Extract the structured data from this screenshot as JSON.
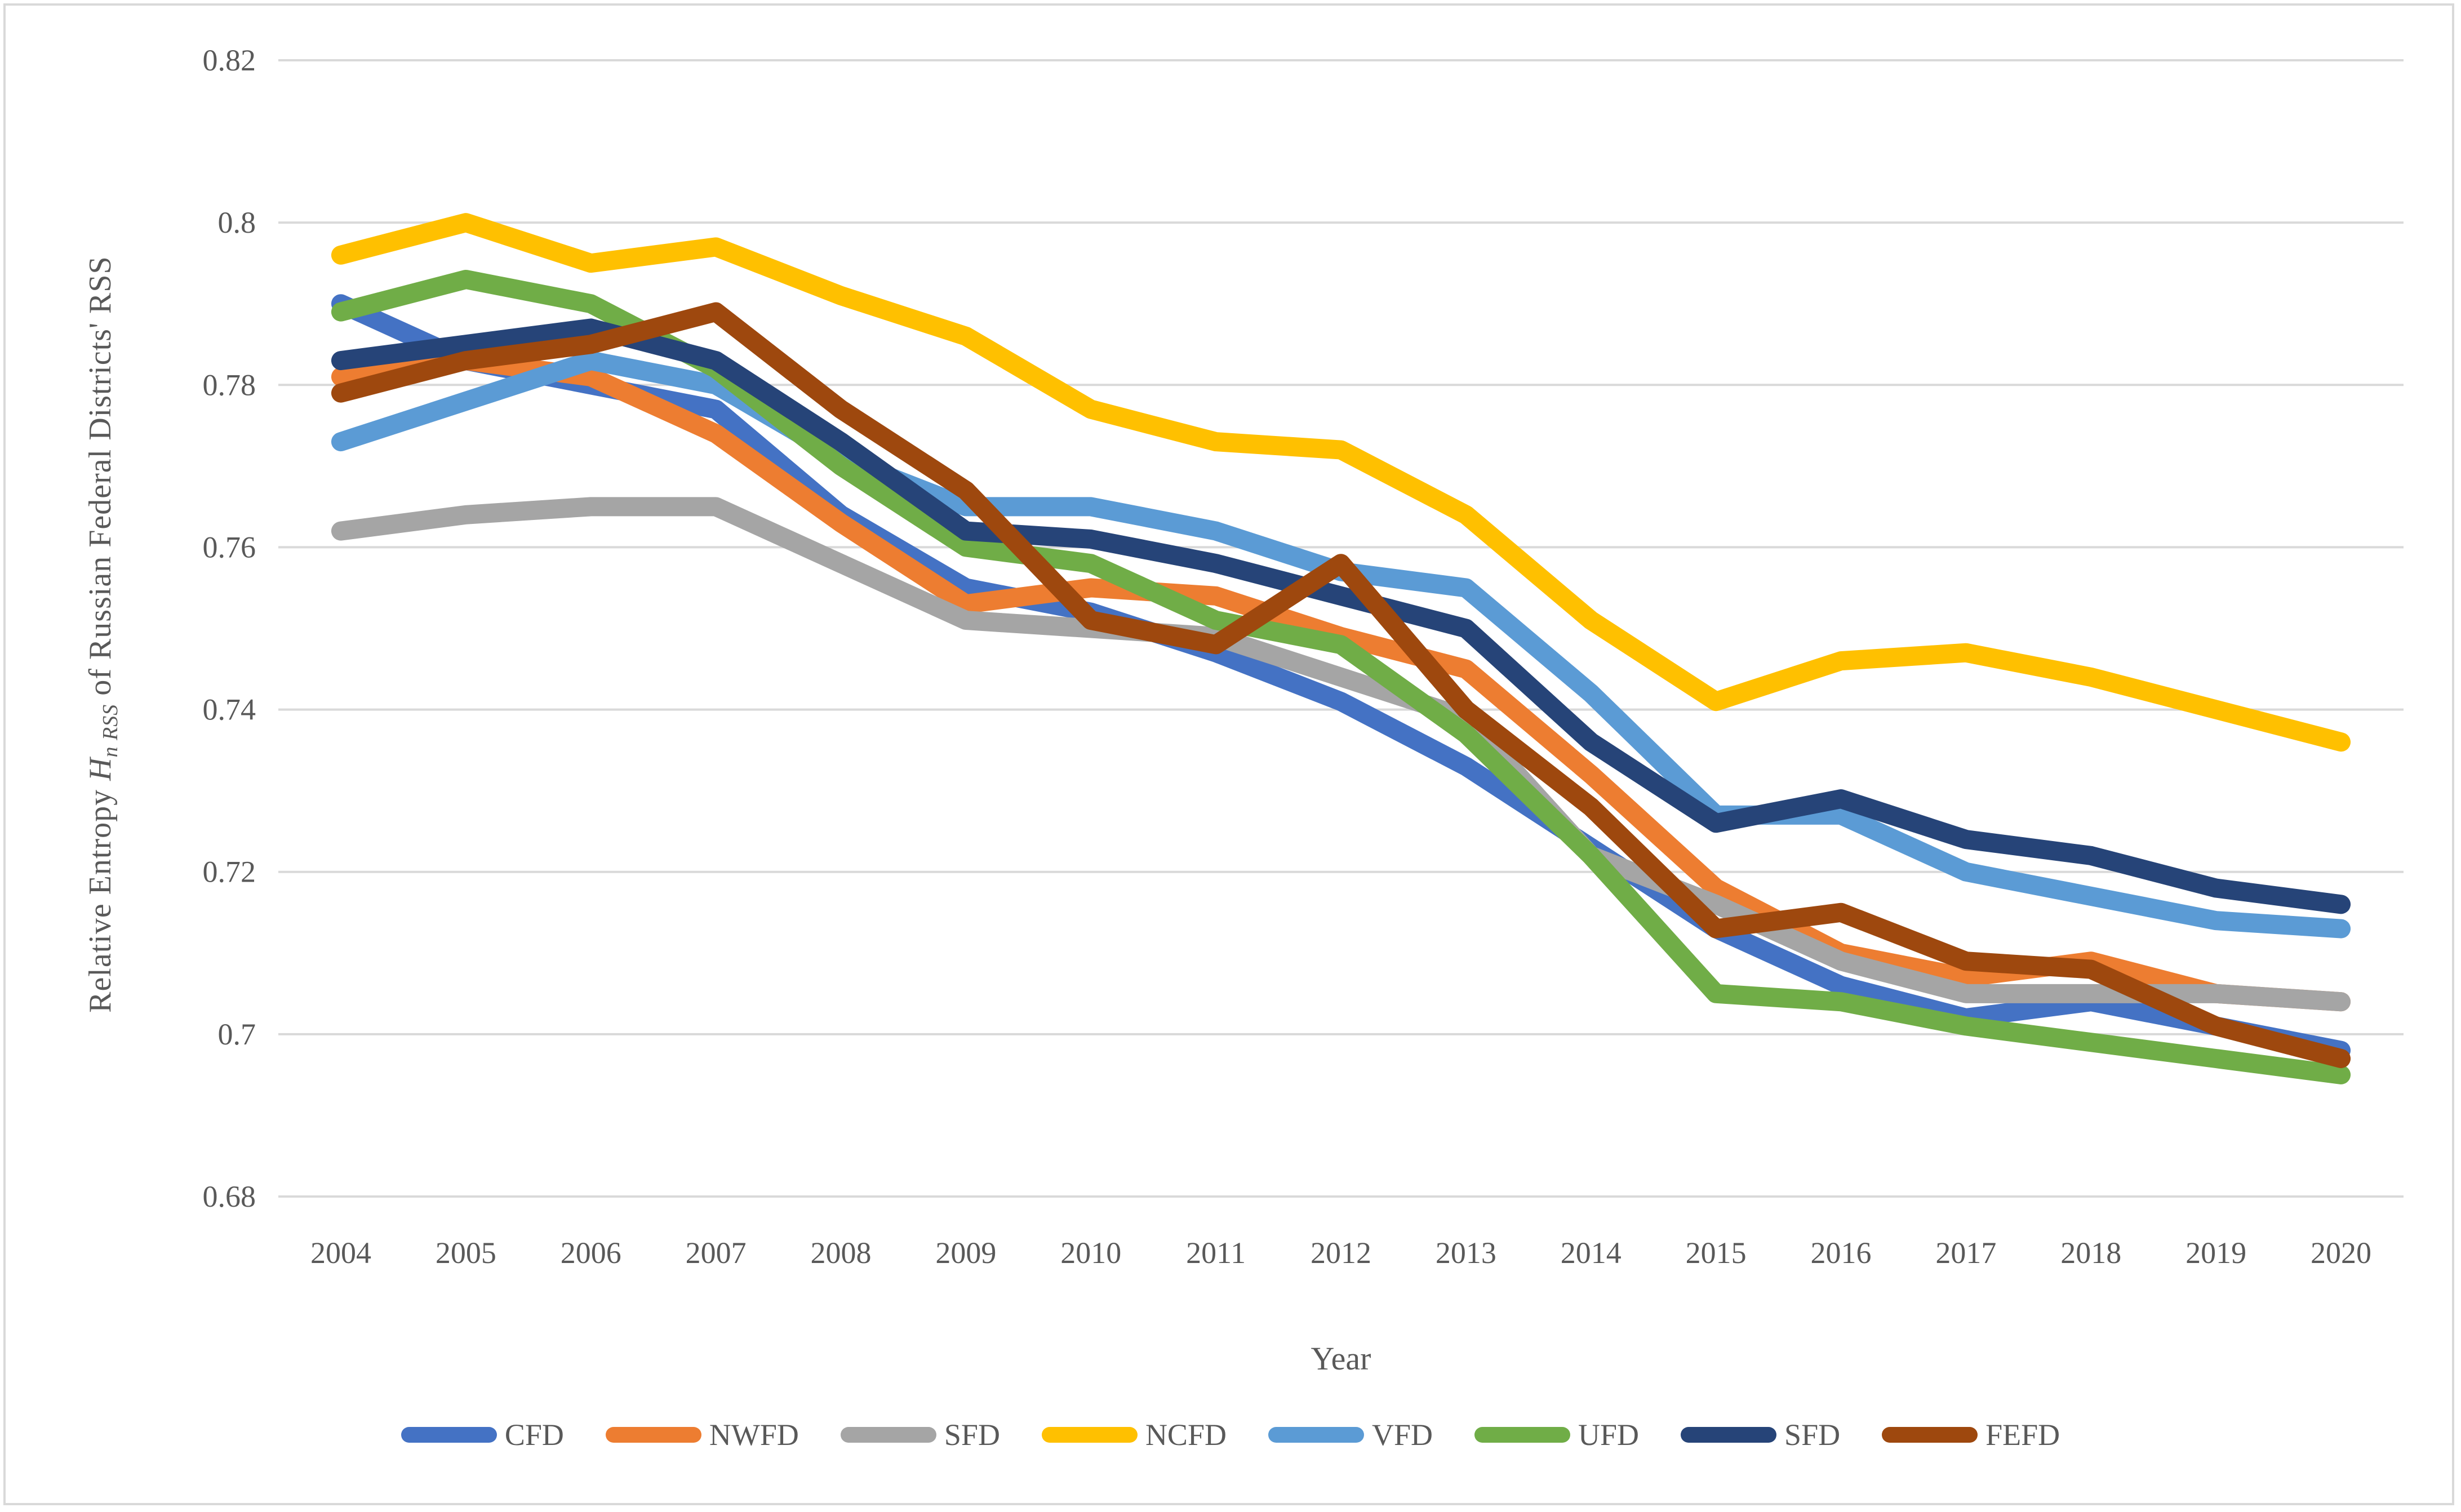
{
  "chart_data": {
    "type": "line",
    "title": "",
    "xlabel": "Year",
    "ylabel": "Relative Entropy H n RSS of Russian Federal Districts' RSS",
    "ylabel_parts": {
      "prefix": "Relative Entropy ",
      "symbol": "H",
      "subscript": "n RSS",
      "suffix": " of Russian Federal Districts' RSS"
    },
    "categories": [
      2004,
      2005,
      2006,
      2007,
      2008,
      2009,
      2010,
      2011,
      2012,
      2013,
      2014,
      2015,
      2016,
      2017,
      2018,
      2019,
      2020
    ],
    "ylim": [
      0.68,
      0.82
    ],
    "ytick_step": 0.02,
    "ytick_labels": [
      "0.82",
      "0.8",
      "0.78",
      "0.76",
      "0.74",
      "0.72",
      "0.7",
      "0.68"
    ],
    "ytick_values": [
      0.82,
      0.8,
      0.78,
      0.76,
      0.74,
      0.72,
      0.7,
      0.68
    ],
    "grid": "horizontal",
    "legend_position": "bottom",
    "series": [
      {
        "name": "CFD",
        "color": "#4472C4",
        "values": [
          0.79,
          0.783,
          0.78,
          0.777,
          0.764,
          0.755,
          0.752,
          0.747,
          0.741,
          0.733,
          0.723,
          0.713,
          0.706,
          0.702,
          0.704,
          0.701,
          0.698
        ]
      },
      {
        "name": "NWFD",
        "color": "#ED7D31",
        "values": [
          0.781,
          0.783,
          0.781,
          0.774,
          0.763,
          0.753,
          0.755,
          0.754,
          0.749,
          0.745,
          0.732,
          0.718,
          0.71,
          0.707,
          0.709,
          0.705,
          0.704
        ]
      },
      {
        "name": "SFD",
        "color": "#A5A5A5",
        "values": [
          0.762,
          0.764,
          0.765,
          0.765,
          0.758,
          0.751,
          0.75,
          0.749,
          0.744,
          0.739,
          0.722,
          0.716,
          0.709,
          0.705,
          0.705,
          0.705,
          0.704
        ]
      },
      {
        "name": "NCFD",
        "color": "#FFC000",
        "values": [
          0.796,
          0.8,
          0.795,
          0.797,
          0.791,
          0.786,
          0.777,
          0.773,
          0.772,
          0.764,
          0.751,
          0.741,
          0.746,
          0.747,
          0.744,
          0.74,
          0.736
        ]
      },
      {
        "name": "VFD",
        "color": "#5B9BD5",
        "values": [
          0.773,
          0.778,
          0.783,
          0.78,
          0.771,
          0.765,
          0.765,
          0.762,
          0.757,
          0.755,
          0.742,
          0.727,
          0.727,
          0.72,
          0.717,
          0.714,
          0.713
        ]
      },
      {
        "name": "UFD",
        "color": "#70AD47",
        "values": [
          0.789,
          0.793,
          0.79,
          0.782,
          0.77,
          0.76,
          0.758,
          0.751,
          0.748,
          0.737,
          0.722,
          0.705,
          0.704,
          0.701,
          0.699,
          0.697,
          0.695
        ]
      },
      {
        "name": "SFD",
        "color": "#264478",
        "values": [
          0.783,
          0.785,
          0.787,
          0.783,
          0.773,
          0.762,
          0.761,
          0.758,
          0.754,
          0.75,
          0.736,
          0.726,
          0.729,
          0.724,
          0.722,
          0.718,
          0.716
        ]
      },
      {
        "name": "FEFD",
        "color": "#9E480E",
        "values": [
          0.779,
          0.783,
          0.785,
          0.789,
          0.777,
          0.767,
          0.751,
          0.748,
          0.758,
          0.74,
          0.728,
          0.713,
          0.715,
          0.709,
          0.708,
          0.701,
          0.697
        ]
      }
    ]
  },
  "styles": {
    "grid_color": "#d9d9d9",
    "frame_color": "#d9d9d9",
    "text_color": "#595959",
    "background": "#ffffff",
    "line_width": 34
  }
}
